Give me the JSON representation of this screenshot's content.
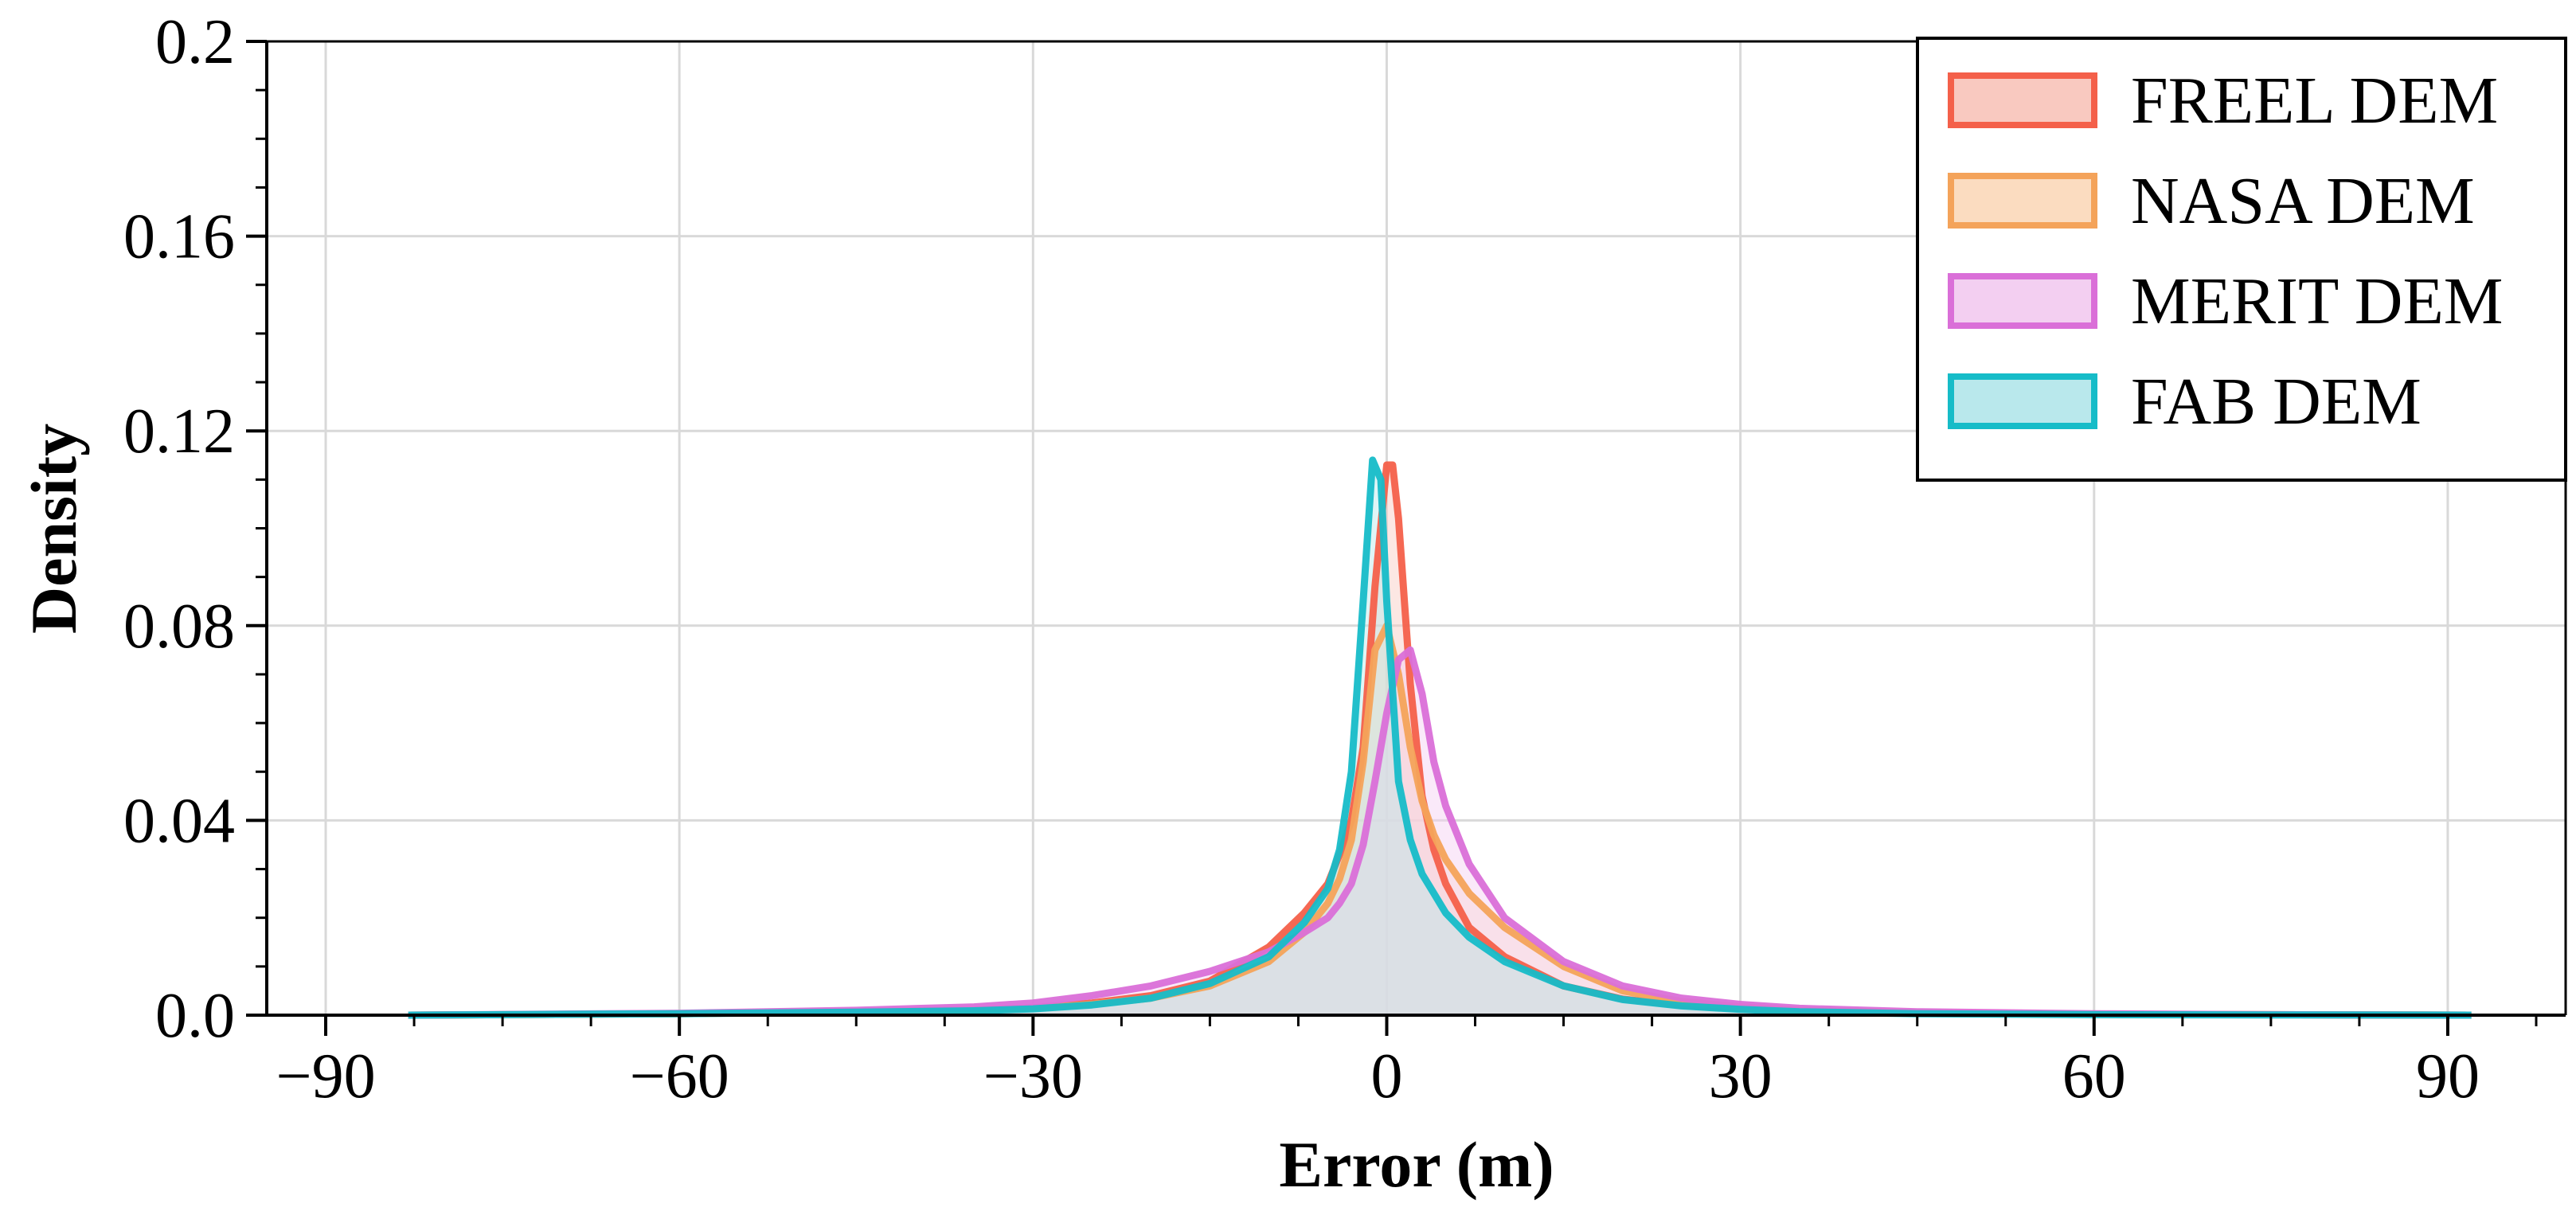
{
  "chart_data": {
    "type": "area",
    "title": "",
    "xlabel": "Error (m)",
    "ylabel": "Density",
    "xlim": [
      -95,
      100
    ],
    "ylim": [
      0,
      0.2
    ],
    "xticks": [
      -90,
      -60,
      -30,
      0,
      30,
      60,
      90
    ],
    "xtick_labels": [
      "−90",
      "−60",
      "−30",
      "0",
      "30",
      "60",
      "90"
    ],
    "yticks": [
      0,
      0.04,
      0.08,
      0.12,
      0.16,
      0.2
    ],
    "ytick_labels": [
      "0.0",
      "0.04",
      "0.08",
      "0.12",
      "0.16",
      "0.2"
    ],
    "grid": true,
    "legend_position": "top-right",
    "series": [
      {
        "name": "FREEL DEM",
        "color": "#f4604a",
        "fill": "#f9c9c0",
        "x": [
          -83,
          -60,
          -45,
          -35,
          -30,
          -25,
          -20,
          -15,
          -10,
          -7,
          -5,
          -4,
          -3,
          -2,
          -1,
          0,
          0.5,
          1,
          2,
          3,
          4,
          5,
          7,
          10,
          15,
          20,
          25,
          30,
          35,
          45,
          60,
          75,
          92
        ],
        "values": [
          0.0,
          0.0003,
          0.0007,
          0.001,
          0.0015,
          0.0025,
          0.004,
          0.007,
          0.014,
          0.021,
          0.027,
          0.033,
          0.04,
          0.055,
          0.088,
          0.113,
          0.113,
          0.102,
          0.068,
          0.045,
          0.034,
          0.027,
          0.018,
          0.012,
          0.006,
          0.0033,
          0.002,
          0.0013,
          0.0008,
          0.0004,
          0.0002,
          0.0001,
          0.0
        ]
      },
      {
        "name": "NASA DEM",
        "color": "#f4a35a",
        "fill": "#fbdcc0",
        "x": [
          -83,
          -60,
          -45,
          -35,
          -30,
          -25,
          -20,
          -15,
          -10,
          -7,
          -5,
          -4,
          -3,
          -2,
          -1,
          0,
          1,
          2,
          3,
          4,
          5,
          7,
          10,
          15,
          20,
          25,
          30,
          35,
          45,
          60,
          75,
          92
        ],
        "values": [
          0.0,
          0.0003,
          0.0007,
          0.001,
          0.0014,
          0.0022,
          0.0035,
          0.006,
          0.011,
          0.017,
          0.023,
          0.028,
          0.036,
          0.052,
          0.075,
          0.08,
          0.07,
          0.055,
          0.044,
          0.037,
          0.032,
          0.025,
          0.018,
          0.01,
          0.005,
          0.0028,
          0.0017,
          0.001,
          0.0005,
          0.0002,
          0.0001,
          0.0
        ]
      },
      {
        "name": "MERIT DEM",
        "color": "#da6fd8",
        "fill": "#f3cff1",
        "x": [
          -83,
          -60,
          -45,
          -35,
          -30,
          -25,
          -20,
          -15,
          -10,
          -7,
          -5,
          -4,
          -3,
          -2,
          -1,
          0,
          1,
          2,
          3,
          4,
          5,
          7,
          10,
          15,
          20,
          25,
          30,
          35,
          45,
          60,
          75,
          92
        ],
        "values": [
          0.0,
          0.0004,
          0.001,
          0.0017,
          0.0025,
          0.004,
          0.006,
          0.009,
          0.013,
          0.017,
          0.02,
          0.023,
          0.027,
          0.035,
          0.048,
          0.062,
          0.073,
          0.075,
          0.066,
          0.052,
          0.043,
          0.031,
          0.02,
          0.011,
          0.006,
          0.0035,
          0.0022,
          0.0014,
          0.0007,
          0.0003,
          0.0001,
          0.0
        ]
      },
      {
        "name": "FAB DEM",
        "color": "#16bcc8",
        "fill": "#b9e8ec",
        "x": [
          -83,
          -60,
          -45,
          -35,
          -30,
          -25,
          -20,
          -15,
          -10,
          -7,
          -5,
          -4,
          -3,
          -2,
          -1.2,
          -0.5,
          0,
          1,
          2,
          3,
          4,
          5,
          7,
          10,
          15,
          20,
          25,
          30,
          35,
          45,
          60,
          75,
          92
        ],
        "values": [
          0.0,
          0.0003,
          0.0006,
          0.0009,
          0.0013,
          0.0021,
          0.0035,
          0.0065,
          0.012,
          0.019,
          0.026,
          0.034,
          0.05,
          0.085,
          0.114,
          0.11,
          0.085,
          0.048,
          0.036,
          0.029,
          0.025,
          0.021,
          0.016,
          0.011,
          0.006,
          0.0032,
          0.0019,
          0.0012,
          0.0007,
          0.0003,
          0.0001,
          5e-05,
          0.0
        ]
      }
    ]
  }
}
